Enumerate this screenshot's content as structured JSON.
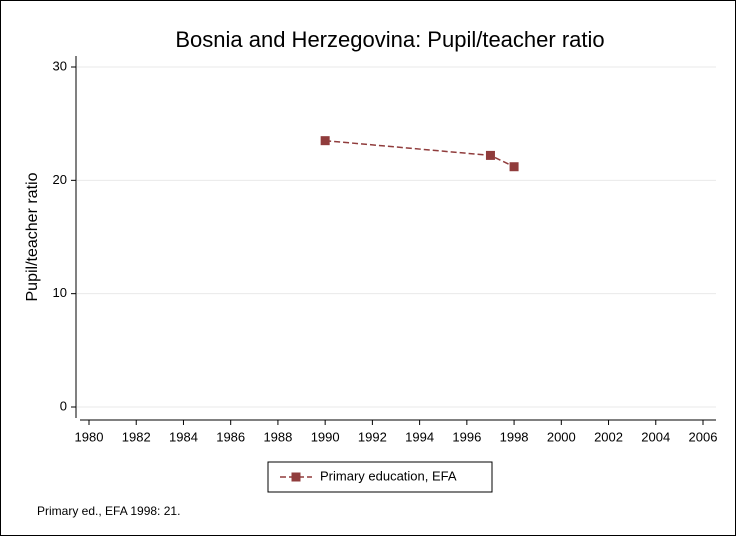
{
  "chart_data": {
    "type": "line",
    "title": "Bosnia and Herzegovina: Pupil/teacher ratio",
    "y_label": "Pupil/teacher ratio",
    "x": [
      1990,
      1997,
      1998
    ],
    "series": [
      {
        "name": "Primary education, EFA",
        "color": "#903c3c",
        "values": [
          23.5,
          22.2,
          21.2
        ]
      }
    ],
    "xlim": [
      1980,
      2006
    ],
    "xticks": [
      1980,
      1982,
      1984,
      1986,
      1988,
      1990,
      1992,
      1994,
      1996,
      1998,
      2000,
      2002,
      2004,
      2006
    ],
    "ylim": [
      0,
      30
    ],
    "yticks": [
      0,
      10,
      20,
      30
    ],
    "grid": true,
    "legend": "bottom",
    "note": "Primary ed., EFA 1998: 21."
  }
}
